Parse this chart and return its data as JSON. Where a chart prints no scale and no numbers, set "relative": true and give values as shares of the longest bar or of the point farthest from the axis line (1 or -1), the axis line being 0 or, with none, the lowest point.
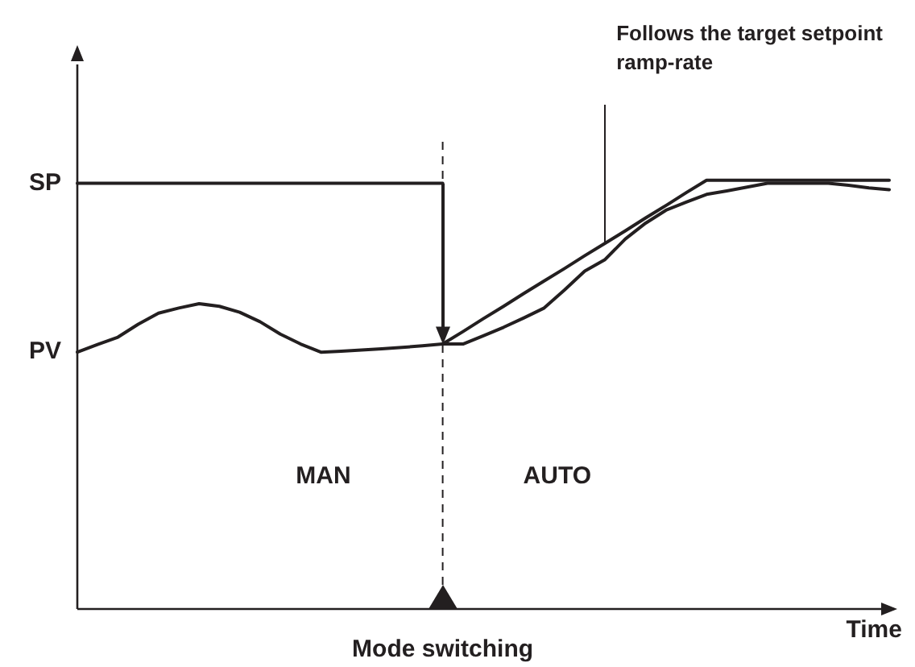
{
  "chart_data": {
    "type": "line",
    "relative": true,
    "xlabel": "Time",
    "marker": "none",
    "line_style": "solid",
    "categories": [
      null,
      null,
      null,
      null,
      null,
      null,
      null,
      null,
      null,
      null,
      null,
      null,
      null,
      null,
      null,
      null,
      null,
      null,
      null,
      null,
      null,
      null,
      null,
      null,
      null,
      null,
      null,
      null,
      null,
      null,
      null,
      null,
      null,
      null,
      null,
      null,
      null,
      null,
      null,
      null,
      null
    ],
    "series": [
      {
        "name": "SP",
        "color": "#231f20",
        "values": [
          0.993,
          0.993,
          0.993,
          0.993,
          0.993,
          0.993,
          0.993,
          0.993,
          0.993,
          0.993,
          0.993,
          0.993,
          0.993,
          0.993,
          0.993,
          0.993,
          0.993,
          0.993,
          0.993,
          null,
          null,
          null,
          null,
          null,
          null,
          null,
          null,
          null,
          null,
          null,
          null,
          null,
          null,
          null,
          null,
          null,
          null,
          null,
          null,
          null,
          null
        ]
      },
      {
        "color": "#231f20",
        "values": [
          null,
          null,
          null,
          null,
          null,
          null,
          null,
          null,
          null,
          null,
          null,
          null,
          null,
          null,
          null,
          null,
          null,
          null,
          0.618,
          0.647,
          0.677,
          0.706,
          0.736,
          0.765,
          0.794,
          0.824,
          0.853,
          0.882,
          0.912,
          0.941,
          0.971,
          1,
          1,
          1,
          1,
          1,
          1,
          1,
          1,
          1,
          1
        ]
      },
      {
        "name": "PV",
        "color": "#231f20",
        "values": [
          0.599,
          0.617,
          0.634,
          0.664,
          0.69,
          0.702,
          0.712,
          0.706,
          0.692,
          0.67,
          0.641,
          0.618,
          0.599,
          0.601,
          0.604,
          0.607,
          0.61,
          0.614,
          0.618,
          0.618,
          0.637,
          0.657,
          0.679,
          0.702,
          0.744,
          0.788,
          0.815,
          0.863,
          0.9,
          0.93,
          0.949,
          0.967,
          0.975,
          0.984,
          0.993,
          0.993,
          0.993,
          0.993,
          0.988,
          0.982,
          0.978
        ]
      }
    ],
    "annotations": [
      "Follows the target setpoint ramp-rate",
      "MAN",
      "AUTO",
      "Mode switching"
    ]
  }
}
